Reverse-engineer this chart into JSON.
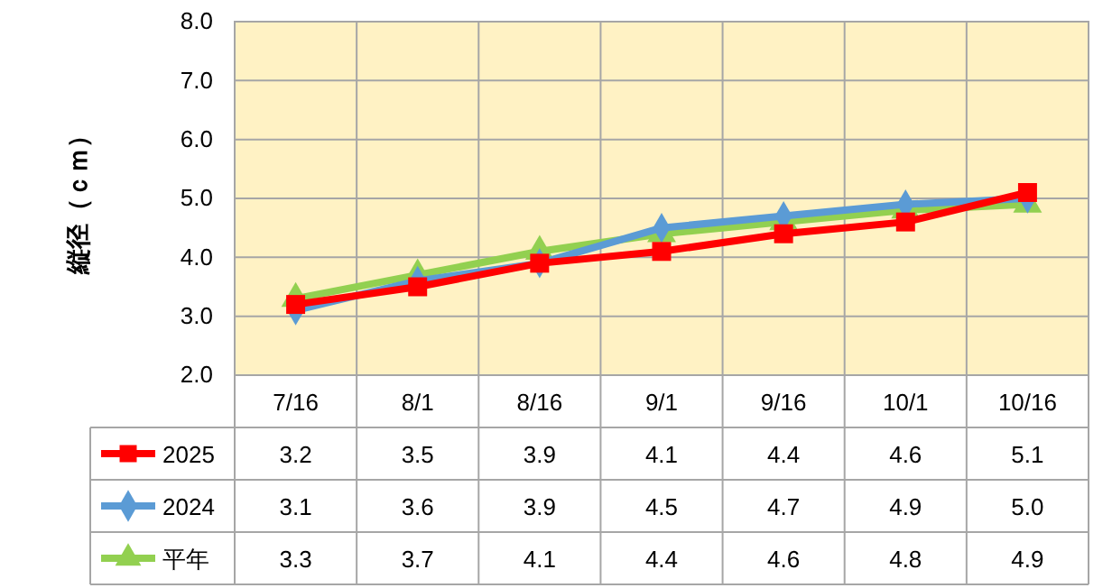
{
  "chart_data": {
    "type": "line",
    "ylabel": "縦径（ｃｍ）",
    "categories": [
      "7/16",
      "8/1",
      "8/16",
      "9/1",
      "9/16",
      "10/1",
      "10/16"
    ],
    "series": [
      {
        "name": "2025",
        "color": "#ff0000",
        "marker": "square",
        "values": [
          3.2,
          3.5,
          3.9,
          4.1,
          4.4,
          4.6,
          5.1
        ],
        "value_labels": [
          "3.2",
          "3.5",
          "3.9",
          "4.1",
          "4.4",
          "4.6",
          "5.1"
        ]
      },
      {
        "name": "2024",
        "color": "#5b9bd5",
        "marker": "diamond",
        "values": [
          3.1,
          3.6,
          3.9,
          4.5,
          4.7,
          4.9,
          5.0
        ],
        "value_labels": [
          "3.1",
          "3.6",
          "3.9",
          "4.5",
          "4.7",
          "4.9",
          "5.0"
        ]
      },
      {
        "name": "平年",
        "color": "#92d050",
        "marker": "triangle",
        "values": [
          3.3,
          3.7,
          4.1,
          4.4,
          4.6,
          4.8,
          4.9
        ],
        "value_labels": [
          "3.3",
          "3.7",
          "4.1",
          "4.4",
          "4.6",
          "4.8",
          "4.9"
        ]
      }
    ],
    "ylim": [
      2,
      8
    ],
    "yticks": [
      {
        "value": 2,
        "label": "2.0"
      },
      {
        "value": 3,
        "label": "3.0"
      },
      {
        "value": 4,
        "label": "4.0"
      },
      {
        "value": 5,
        "label": "5.0"
      },
      {
        "value": 6,
        "label": "6.0"
      },
      {
        "value": 7,
        "label": "7.0"
      },
      {
        "value": 8,
        "label": "8.0"
      }
    ],
    "grid": true,
    "legend": "bottom",
    "line_style": "solid"
  }
}
